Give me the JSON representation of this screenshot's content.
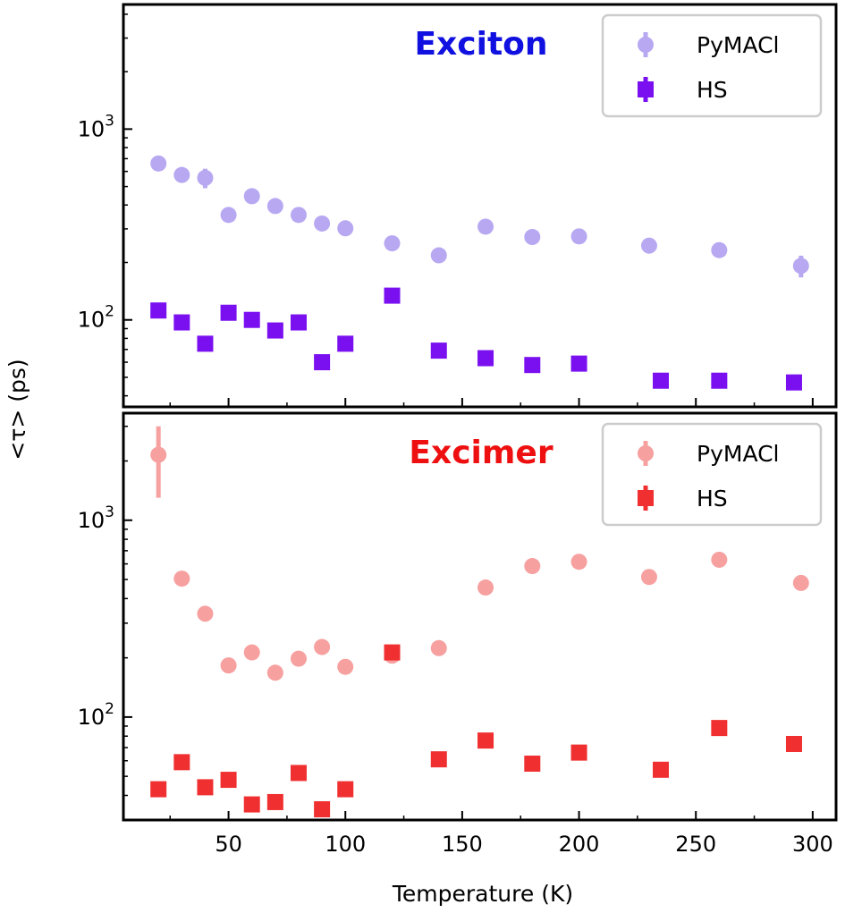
{
  "chart_data": {
    "type": "scatter",
    "xlabel": "Temperature (K)",
    "ylabel": "<τ> (ps)",
    "xlim": [
      5,
      310
    ],
    "x_ticks": [
      50,
      100,
      150,
      200,
      250,
      300
    ],
    "y_scale": "log",
    "shared_x": true,
    "panels": [
      {
        "title": "Exciton",
        "title_color": "#1010e0",
        "ylim": [
          35,
          4500
        ],
        "y_major_ticks": [
          {
            "value": 100,
            "label": "10",
            "exp": "2"
          },
          {
            "value": 1000,
            "label": "10",
            "exp": "3"
          }
        ],
        "legend_position": "top-right",
        "series": [
          {
            "name": "PyMACl",
            "marker": "circle",
            "color": "#b8a8f2",
            "points": [
              {
                "x": 20,
                "y": 660,
                "err": 30
              },
              {
                "x": 30,
                "y": 575,
                "err": 30
              },
              {
                "x": 40,
                "y": 555,
                "err": 65
              },
              {
                "x": 50,
                "y": 355,
                "err": 15
              },
              {
                "x": 60,
                "y": 445,
                "err": 20
              },
              {
                "x": 70,
                "y": 395,
                "err": 15
              },
              {
                "x": 80,
                "y": 355,
                "err": 15
              },
              {
                "x": 90,
                "y": 320,
                "err": 15
              },
              {
                "x": 100,
                "y": 302,
                "err": 15
              },
              {
                "x": 120,
                "y": 252,
                "err": 10
              },
              {
                "x": 140,
                "y": 218,
                "err": 10
              },
              {
                "x": 160,
                "y": 308,
                "err": 15
              },
              {
                "x": 180,
                "y": 272,
                "err": 12
              },
              {
                "x": 200,
                "y": 274,
                "err": 22
              },
              {
                "x": 230,
                "y": 245,
                "err": 10
              },
              {
                "x": 260,
                "y": 232,
                "err": 10
              },
              {
                "x": 295,
                "y": 192,
                "err": 25
              }
            ]
          },
          {
            "name": "HS",
            "marker": "square",
            "color": "#7a10f0",
            "points": [
              {
                "x": 20,
                "y": 112,
                "err": 4
              },
              {
                "x": 30,
                "y": 97,
                "err": 4
              },
              {
                "x": 40,
                "y": 75,
                "err": 3
              },
              {
                "x": 50,
                "y": 109,
                "err": 4
              },
              {
                "x": 60,
                "y": 100,
                "err": 4
              },
              {
                "x": 70,
                "y": 88,
                "err": 3
              },
              {
                "x": 80,
                "y": 97,
                "err": 4
              },
              {
                "x": 90,
                "y": 60,
                "err": 2
              },
              {
                "x": 100,
                "y": 75,
                "err": 3
              },
              {
                "x": 120,
                "y": 134,
                "err": 5
              },
              {
                "x": 140,
                "y": 69,
                "err": 3
              },
              {
                "x": 160,
                "y": 63,
                "err": 2
              },
              {
                "x": 180,
                "y": 58,
                "err": 2
              },
              {
                "x": 200,
                "y": 59,
                "err": 2
              },
              {
                "x": 235,
                "y": 48,
                "err": 2
              },
              {
                "x": 260,
                "y": 48,
                "err": 2
              },
              {
                "x": 292,
                "y": 47,
                "err": 2
              }
            ]
          }
        ]
      },
      {
        "title": "Excimer",
        "title_color": "#ee1010",
        "ylim": [
          30,
          3500
        ],
        "y_major_ticks": [
          {
            "value": 100,
            "label": "10",
            "exp": "2"
          },
          {
            "value": 1000,
            "label": "10",
            "exp": "3"
          }
        ],
        "legend_position": "top-right",
        "series": [
          {
            "name": "PyMACl",
            "marker": "circle",
            "color": "#f7a0a0",
            "points": [
              {
                "x": 20,
                "y": 2150,
                "err": 850
              },
              {
                "x": 30,
                "y": 505,
                "err": 20
              },
              {
                "x": 40,
                "y": 335,
                "err": 15
              },
              {
                "x": 50,
                "y": 183,
                "err": 8
              },
              {
                "x": 60,
                "y": 213,
                "err": 10
              },
              {
                "x": 70,
                "y": 168,
                "err": 8
              },
              {
                "x": 80,
                "y": 198,
                "err": 8
              },
              {
                "x": 90,
                "y": 227,
                "err": 10
              },
              {
                "x": 100,
                "y": 180,
                "err": 8
              },
              {
                "x": 120,
                "y": 205,
                "err": 10
              },
              {
                "x": 140,
                "y": 224,
                "err": 10
              },
              {
                "x": 160,
                "y": 455,
                "err": 20
              },
              {
                "x": 180,
                "y": 585,
                "err": 25
              },
              {
                "x": 200,
                "y": 615,
                "err": 25
              },
              {
                "x": 230,
                "y": 515,
                "err": 20
              },
              {
                "x": 260,
                "y": 630,
                "err": 25
              },
              {
                "x": 295,
                "y": 480,
                "err": 20
              }
            ]
          },
          {
            "name": "HS",
            "marker": "square",
            "color": "#f03030",
            "points": [
              {
                "x": 20,
                "y": 43,
                "err": 2
              },
              {
                "x": 30,
                "y": 59,
                "err": 2
              },
              {
                "x": 40,
                "y": 44,
                "err": 2
              },
              {
                "x": 50,
                "y": 48,
                "err": 2
              },
              {
                "x": 60,
                "y": 36,
                "err": 1.5
              },
              {
                "x": 70,
                "y": 37,
                "err": 1.5
              },
              {
                "x": 80,
                "y": 52,
                "err": 2
              },
              {
                "x": 90,
                "y": 34,
                "err": 1.5
              },
              {
                "x": 100,
                "y": 43,
                "err": 2
              },
              {
                "x": 120,
                "y": 213,
                "err": 15
              },
              {
                "x": 140,
                "y": 61,
                "err": 2
              },
              {
                "x": 160,
                "y": 76,
                "err": 3
              },
              {
                "x": 180,
                "y": 58,
                "err": 2
              },
              {
                "x": 200,
                "y": 66,
                "err": 3
              },
              {
                "x": 235,
                "y": 54,
                "err": 2
              },
              {
                "x": 260,
                "y": 88,
                "err": 3
              },
              {
                "x": 292,
                "y": 73,
                "err": 3
              }
            ]
          }
        ]
      }
    ]
  }
}
